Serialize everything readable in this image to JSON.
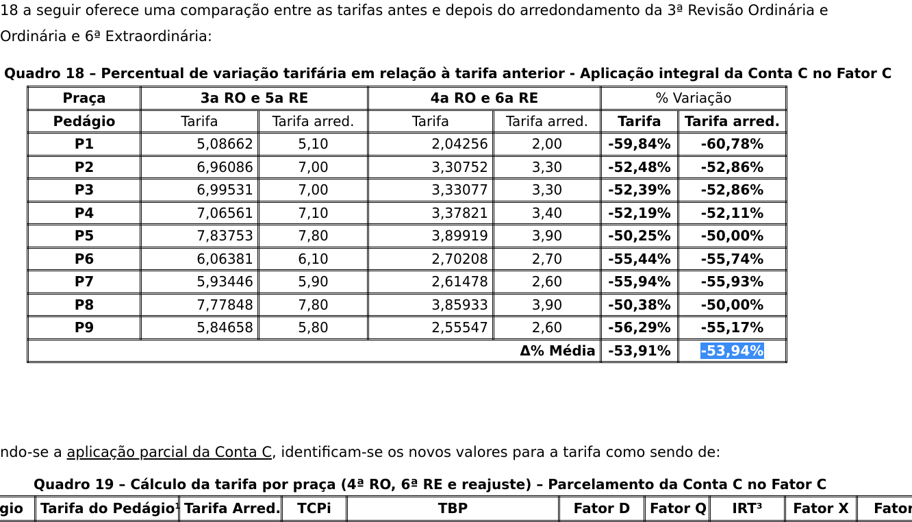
{
  "paragraphs": {
    "line1": "18 a seguir oferece uma comparação entre as tarifas antes e depois do arredondamento da 3ª Revisão Ordinária e",
    "line2": "Ordinária e 6ª Extraordinária:",
    "p2_before": "ndo-se a ",
    "p2_link": "aplicação parcial da Conta C",
    "p2_after": ", identificam-se os novos valores para a tarifa como sendo de:"
  },
  "quadro18": {
    "caption": "Quadro 18 – Percentual de variação tarifária em relação à tarifa anterior - Aplicação integral da Conta C no Fator C",
    "header": {
      "praca": "Praça",
      "pedagio": "Pedágio",
      "group1": "3a RO e 5a RE",
      "group2": "4a RO e 6a RE",
      "group3": "% Variação",
      "tarifa": "Tarifa",
      "tarifa_arred": "Tarifa arred."
    },
    "rows": [
      {
        "praca": "P1",
        "t1": "5,08662",
        "a1": "5,10",
        "t2": "2,04256",
        "a2": "2,00",
        "vt": "-59,84%",
        "va": "-60,78%"
      },
      {
        "praca": "P2",
        "t1": "6,96086",
        "a1": "7,00",
        "t2": "3,30752",
        "a2": "3,30",
        "vt": "-52,48%",
        "va": "-52,86%"
      },
      {
        "praca": "P3",
        "t1": "6,99531",
        "a1": "7,00",
        "t2": "3,33077",
        "a2": "3,30",
        "vt": "-52,39%",
        "va": "-52,86%"
      },
      {
        "praca": "P4",
        "t1": "7,06561",
        "a1": "7,10",
        "t2": "3,37821",
        "a2": "3,40",
        "vt": "-52,19%",
        "va": "-52,11%"
      },
      {
        "praca": "P5",
        "t1": "7,83753",
        "a1": "7,80",
        "t2": "3,89919",
        "a2": "3,90",
        "vt": "-50,25%",
        "va": "-50,00%"
      },
      {
        "praca": "P6",
        "t1": "6,06381",
        "a1": "6,10",
        "t2": "2,70208",
        "a2": "2,70",
        "vt": "-55,44%",
        "va": "-55,74%"
      },
      {
        "praca": "P7",
        "t1": "5,93446",
        "a1": "5,90",
        "t2": "2,61478",
        "a2": "2,60",
        "vt": "-55,94%",
        "va": "-55,93%"
      },
      {
        "praca": "P8",
        "t1": "7,77848",
        "a1": "7,80",
        "t2": "3,85933",
        "a2": "3,90",
        "vt": "-50,38%",
        "va": "-50,00%"
      },
      {
        "praca": "P9",
        "t1": "5,84658",
        "a1": "5,80",
        "t2": "2,55547",
        "a2": "2,60",
        "vt": "-56,29%",
        "va": "-55,17%"
      }
    ],
    "footer": {
      "label": "Δ% Média",
      "tarifa": "-53,91%",
      "tarifa_arred": "-53,94%"
    }
  },
  "quadro19": {
    "caption": "Quadro 19 – Cálculo da tarifa por praça (4ª RO, 6ª RE e reajuste) – Parcelamento da Conta C no Fator C",
    "headers": [
      "gio",
      "Tarifa do Pedágio¹",
      "Tarifa Arred.",
      "TCPi",
      "TBP",
      "Fator D",
      "Fator Q",
      "IRT³",
      "Fator X",
      "Fator C"
    ]
  },
  "colors": {
    "selection_highlight": "#3b8cf5"
  }
}
